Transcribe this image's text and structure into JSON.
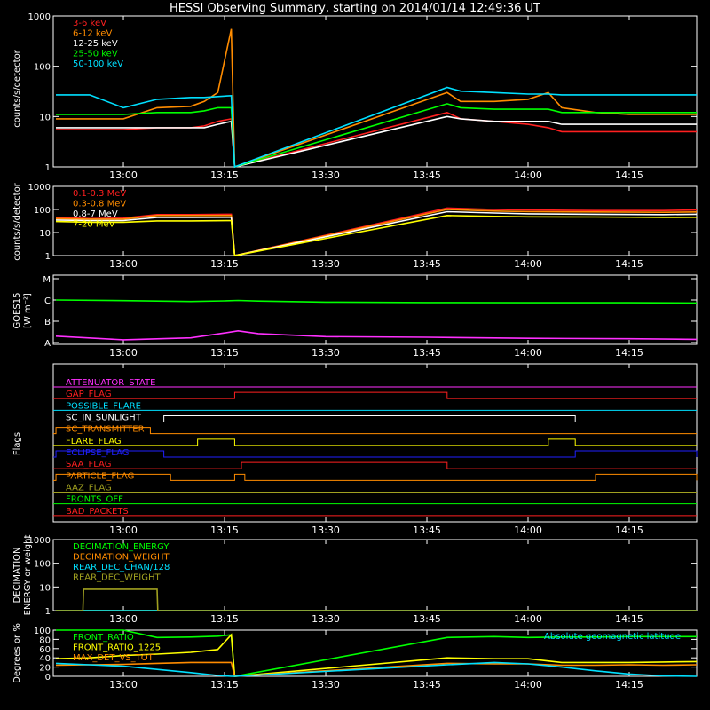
{
  "title": "HESSI Observing Summary, starting on 2014/01/14 12:49:36 UT",
  "time_ticks": [
    "13:00",
    "13:15",
    "13:30",
    "13:45",
    "14:00",
    "14:15"
  ],
  "colors": {
    "red": "#ff2020",
    "orange": "#ff8c00",
    "yellow": "#ffff00",
    "green": "#00ff00",
    "cyan": "#00e0ff",
    "magenta": "#ff30ff",
    "blue": "#2020ff",
    "olive": "#a0a020",
    "white": "#ffffff"
  },
  "chart_data": [
    {
      "type": "line",
      "ylabel": "counts/s/detector",
      "log_scale": true,
      "ylim": [
        1,
        1000
      ],
      "y_ticks": [
        "1",
        "10",
        "100",
        "1000"
      ],
      "x_ticks": [
        "13:00",
        "13:15",
        "13:30",
        "13:45",
        "14:00",
        "14:15"
      ],
      "x": [
        "12:50",
        "12:55",
        "13:00",
        "13:05",
        "13:10",
        "13:12",
        "13:14",
        "13:16",
        "13:16.5",
        "13:48",
        "13:50",
        "13:55",
        "14:00",
        "14:03",
        "14:05",
        "14:10",
        "14:15",
        "14:20",
        "14:25"
      ],
      "series": [
        {
          "name": "3-6 keV",
          "color": "red",
          "values": [
            5.5,
            5.5,
            5.5,
            6,
            6,
            6.5,
            8,
            9,
            1,
            12,
            9,
            8,
            7,
            6,
            5,
            5,
            5,
            5,
            5
          ]
        },
        {
          "name": "6-12 keV",
          "color": "orange",
          "values": [
            9,
            9,
            9,
            15,
            16,
            20,
            30,
            550,
            1,
            30,
            20,
            20,
            22,
            30,
            15,
            12,
            11,
            11,
            11
          ]
        },
        {
          "name": "12-25 keV",
          "color": "white",
          "values": [
            6,
            6,
            6,
            6,
            6,
            6,
            7,
            8,
            1,
            10,
            9,
            8,
            8,
            8,
            7,
            7,
            7,
            7,
            7
          ]
        },
        {
          "name": "25-50 keV",
          "color": "green",
          "values": [
            11,
            11,
            11,
            12,
            12,
            13,
            15,
            15,
            1,
            18,
            15,
            14,
            14,
            14,
            12,
            12,
            12,
            12,
            12
          ]
        },
        {
          "name": "50-100 keV",
          "color": "cyan",
          "values": [
            27,
            27,
            15,
            22,
            24,
            24,
            25,
            26,
            1,
            38,
            32,
            30,
            28,
            28,
            27,
            27,
            27,
            27,
            27
          ]
        }
      ]
    },
    {
      "type": "line",
      "ylabel": "counts/s/detector",
      "log_scale": true,
      "ylim": [
        1,
        1000
      ],
      "y_ticks": [
        "1",
        "10",
        "100",
        "1000"
      ],
      "x_ticks": [
        "13:00",
        "13:15",
        "13:30",
        "13:45",
        "14:00",
        "14:15"
      ],
      "x": [
        "12:50",
        "12:55",
        "13:00",
        "13:05",
        "13:10",
        "13:16",
        "13:16.5",
        "13:48",
        "13:55",
        "14:00",
        "14:10",
        "14:20",
        "14:25"
      ],
      "series": [
        {
          "name": "0.1-0.3 MeV",
          "color": "red",
          "values": [
            45,
            40,
            42,
            60,
            60,
            62,
            1,
            115,
            100,
            95,
            90,
            90,
            95
          ]
        },
        {
          "name": "0.3-0.8 MeV",
          "color": "orange",
          "values": [
            40,
            38,
            38,
            55,
            55,
            55,
            1,
            100,
            85,
            80,
            78,
            75,
            78
          ]
        },
        {
          "name": "0.8-7 MeV",
          "color": "white",
          "values": [
            35,
            33,
            33,
            45,
            45,
            46,
            1,
            80,
            70,
            65,
            62,
            60,
            62
          ]
        },
        {
          "name": "7-20 MeV",
          "color": "yellow",
          "values": [
            30,
            28,
            28,
            32,
            32,
            33,
            1,
            55,
            50,
            48,
            47,
            45,
            46
          ]
        }
      ]
    },
    {
      "type": "line",
      "ylabel": "GOES15",
      "ylabel2": "[W m⁻²]",
      "y_ticks": [
        "A",
        "B",
        "C",
        "M"
      ],
      "x_ticks": [
        "13:00",
        "13:15",
        "13:30",
        "13:45",
        "14:00",
        "14:15"
      ],
      "x": [
        "12:50",
        "13:00",
        "13:10",
        "13:15",
        "13:17",
        "13:20",
        "13:30",
        "13:45",
        "14:00",
        "14:15",
        "14:25"
      ],
      "series": [
        {
          "color": "green",
          "values": [
            2.0,
            1.97,
            1.93,
            1.96,
            1.98,
            1.95,
            1.9,
            1.88,
            1.87,
            1.87,
            1.86
          ]
        },
        {
          "color": "magenta",
          "values": [
            0.3,
            0.13,
            0.22,
            0.45,
            0.55,
            0.42,
            0.28,
            0.25,
            0.2,
            0.18,
            0.15
          ]
        }
      ]
    },
    {
      "type": "line",
      "ylabel": "Flags",
      "x_ticks": [
        "13:00",
        "13:15",
        "13:30",
        "13:45",
        "14:00",
        "14:15"
      ],
      "flags": [
        {
          "name": "ATTENUATOR_STATE",
          "color": "magenta",
          "on": []
        },
        {
          "name": "GAP_FLAG",
          "color": "red",
          "on": [
            [
              "13:16.5",
              "13:48"
            ]
          ]
        },
        {
          "name": "POSSIBLE_FLARE",
          "color": "cyan",
          "on": []
        },
        {
          "name": "SC_IN_SUNLIGHT",
          "color": "white",
          "on": [
            [
              "13:06",
              "14:07"
            ]
          ]
        },
        {
          "name": "SC_TRANSMITTER",
          "color": "orange",
          "on": [
            [
              "12:50",
              "13:04"
            ]
          ]
        },
        {
          "name": "FLARE_FLAG",
          "color": "yellow",
          "on": [
            [
              "13:11",
              "13:16.5"
            ],
            [
              "14:03",
              "14:07"
            ]
          ]
        },
        {
          "name": "ECLIPSE_FLAG",
          "color": "blue",
          "on": [
            [
              "12:50",
              "13:06"
            ],
            [
              "14:07",
              "14:25"
            ]
          ]
        },
        {
          "name": "SAA_FLAG",
          "color": "red",
          "on": [
            [
              "13:17.5",
              "13:48"
            ]
          ]
        },
        {
          "name": "PARTICLE_FLAG",
          "color": "orange",
          "on": [
            [
              "12:50",
              "13:07"
            ],
            [
              "13:16.5",
              "13:18"
            ],
            [
              "14:10",
              "14:25"
            ]
          ]
        },
        {
          "name": "AAZ_FLAG",
          "color": "olive",
          "on": []
        },
        {
          "name": "FRONTS_OFF",
          "color": "green",
          "on": []
        },
        {
          "name": "BAD_PACKETS",
          "color": "red",
          "on": []
        }
      ]
    },
    {
      "type": "line",
      "ylabel": "DECIMATION",
      "ylabel2": "ENERGY or weight",
      "log_scale": true,
      "y_ticks": [
        "1",
        "10",
        "100",
        "1000"
      ],
      "x_ticks": [
        "13:00",
        "13:15",
        "13:30",
        "13:45",
        "14:00",
        "14:15"
      ],
      "x": [
        "12:50",
        "12:54",
        "12:54.1",
        "13:05",
        "13:05.1",
        "14:25"
      ],
      "series": [
        {
          "name": "DECIMATION_ENERGY",
          "color": "green",
          "values": [
            1,
            1,
            1,
            1,
            1,
            1
          ]
        },
        {
          "name": "DECIMATION_WEIGHT",
          "color": "orange",
          "values": [
            1,
            1,
            1,
            1,
            1,
            1
          ]
        },
        {
          "name": "REAR_DEC_CHAN/128",
          "color": "cyan",
          "values": [
            1,
            1,
            1,
            1,
            1,
            1
          ]
        },
        {
          "name": "REAR_DEC_WEIGHT",
          "color": "olive",
          "values": [
            1,
            1,
            8,
            8,
            1,
            1
          ]
        }
      ]
    },
    {
      "type": "line",
      "ylabel": "Degrees or %",
      "ylim": [
        0,
        100
      ],
      "y_ticks": [
        "0",
        "20",
        "40",
        "60",
        "80",
        "100"
      ],
      "x_ticks": [
        "13:00",
        "13:15",
        "13:30",
        "13:45",
        "14:00",
        "14:15"
      ],
      "annotation": "Absolute geomagnetic latitude",
      "x": [
        "12:50",
        "12:55",
        "13:00",
        "13:05",
        "13:10",
        "13:14",
        "13:16",
        "13:16.5",
        "13:48",
        "13:55",
        "14:00",
        "14:05",
        "14:10",
        "14:15",
        "14:20",
        "14:25"
      ],
      "series": [
        {
          "name": "FRONT_RATIO",
          "color": "green",
          "values": [
            100,
            100,
            100,
            84,
            85,
            87,
            90,
            0,
            84,
            86,
            84,
            85,
            85,
            86,
            86,
            86
          ]
        },
        {
          "name": "FRONT_RATIO_1225",
          "color": "yellow",
          "values": [
            38,
            40,
            45,
            48,
            52,
            58,
            90,
            0,
            40,
            38,
            38,
            30,
            30,
            30,
            31,
            32
          ]
        },
        {
          "name": "MAX_DET_VS_TOT",
          "color": "orange",
          "values": [
            24,
            25,
            26,
            28,
            30,
            30,
            30,
            0,
            28,
            27,
            27,
            24,
            24,
            25,
            24,
            25
          ]
        },
        {
          "name": "Absolute geomagnetic latitude",
          "color": "cyan",
          "values": [
            28,
            25,
            22,
            15,
            8,
            2,
            0,
            0,
            25,
            30,
            27,
            20,
            12,
            5,
            1,
            0
          ]
        }
      ]
    }
  ]
}
